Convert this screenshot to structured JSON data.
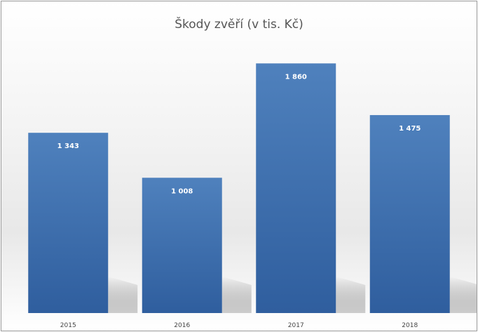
{
  "chart_data": {
    "type": "bar",
    "title": "Škody zvěří (v tis. Kč)",
    "categories": [
      "2015",
      "2016",
      "2017",
      "2018"
    ],
    "values": [
      1343,
      1008,
      1860,
      1475
    ],
    "value_labels": [
      "1 343",
      "1 008",
      "1 860",
      "1 475"
    ],
    "ylim": [
      0,
      2050
    ],
    "grid": false,
    "legend": "none",
    "colors": {
      "bar_top": "#4f81bd",
      "bar_bottom": "#2f5e9e",
      "shadow": "#9c9c9c"
    }
  }
}
